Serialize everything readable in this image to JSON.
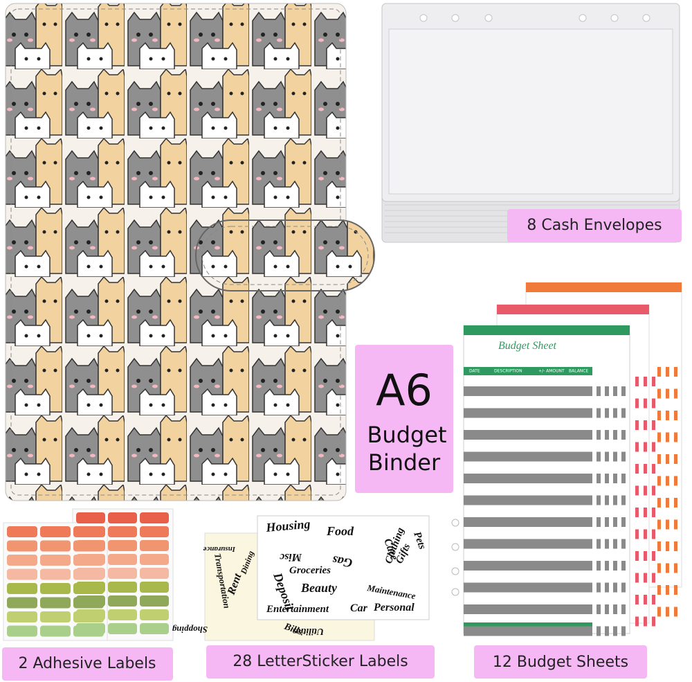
{
  "envelopes": {
    "label": "8 Cash Envelopes"
  },
  "binder": {
    "size": "A6",
    "line1": "Budget",
    "line2": "Binder"
  },
  "adhesive_labels": {
    "label": "2 Adhesive Labels"
  },
  "letter_stickers": {
    "label": "28 LetterSticker Labels",
    "words": [
      "Housing",
      "Food",
      "Care",
      "Pets",
      "Misc",
      "Gas",
      "Clothing",
      "Deposit",
      "Groceries",
      "Gifts",
      "Beauty",
      "Maintenance",
      "Entertainment",
      "Car",
      "Personal",
      "Transportation",
      "Rent",
      "Dining",
      "Insurance",
      "Shopping",
      "Bills",
      "Utilities"
    ]
  },
  "budget_sheets": {
    "label": "12 Budget Sheets",
    "sheet_title": "Budget Sheet",
    "columns": [
      "DATE",
      "DESCRIPTION",
      "+/- AMOUNT",
      "BALANCE"
    ]
  }
}
